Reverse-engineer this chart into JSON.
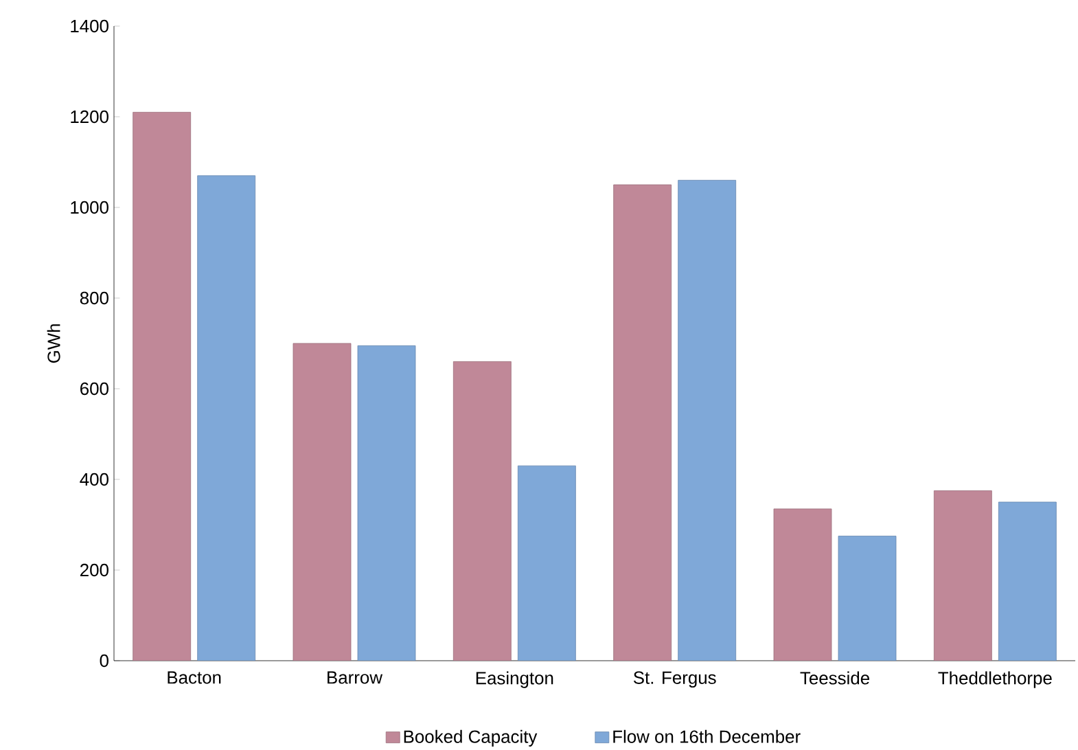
{
  "chart_data": {
    "type": "bar",
    "ylabel": "GWh",
    "categories": [
      "Bacton",
      "Barrow",
      "Easington",
      "St. Fergus",
      "Teesside",
      "Theddlethorpe"
    ],
    "series": [
      {
        "name": "Booked Capacity",
        "color": "#c08898",
        "values": [
          1210,
          700,
          660,
          1050,
          335,
          375
        ]
      },
      {
        "name": "Flow on 16th December",
        "color": "#7fa8d8",
        "values": [
          1070,
          695,
          430,
          1060,
          275,
          350
        ]
      }
    ],
    "ylim": [
      0,
      1400
    ],
    "yticks": [
      0,
      200,
      400,
      600,
      800,
      1000,
      1200,
      1400
    ],
    "grid": false,
    "legend": "bottom"
  }
}
